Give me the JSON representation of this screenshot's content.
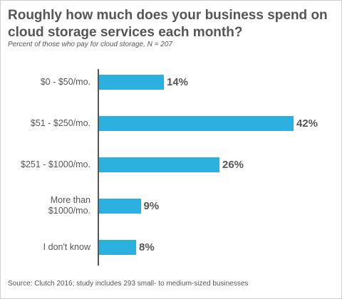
{
  "chart_data": {
    "type": "bar",
    "orientation": "horizontal",
    "title": "Roughly how much does your business spend on cloud storage services each month?",
    "subtitle": "Percent of those who pay for cloud storage, N = 207",
    "categories": [
      "$0 - $50/mo.",
      "$51 - $250/mo.",
      "$251 - $1000/mo.",
      "More than\n$1000/mo.",
      "I don't know"
    ],
    "values": [
      14,
      42,
      26,
      9,
      8
    ],
    "value_labels": [
      "14%",
      "42%",
      "26%",
      "9%",
      "8%"
    ],
    "unit": "%",
    "bar_color": "#2bb0e0",
    "text_color": "#555555",
    "grid": false,
    "legend": "none",
    "source": "Source: Clutch 2016; study includes 293 small- to medium-sized businesses"
  }
}
